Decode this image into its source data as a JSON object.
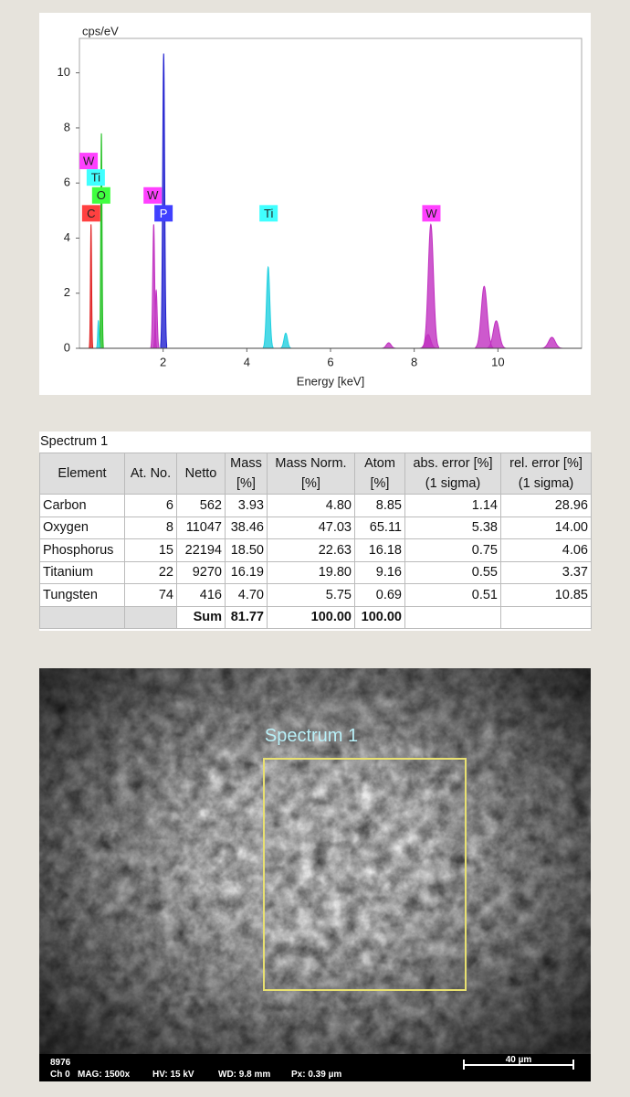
{
  "chart_data": {
    "type": "spectrum",
    "ylabel": "cps/eV",
    "xlabel": "Energy [keV]",
    "xlim": [
      0,
      12
    ],
    "xticks": [
      2,
      4,
      6,
      8,
      10
    ],
    "ylim": [
      0,
      11.25
    ],
    "yticks": [
      0,
      2,
      4,
      6,
      8,
      10
    ],
    "series": [
      {
        "name": "C",
        "color": "#e02020",
        "x": [
          0.277
        ],
        "values": [
          4.5
        ]
      },
      {
        "name": "O",
        "color": "#20c020",
        "x": [
          0.525
        ],
        "values": [
          7.8
        ]
      },
      {
        "name": "Ti",
        "color": "#20d0e0",
        "x": [
          0.452,
          4.51,
          4.93
        ],
        "values": [
          1.0,
          2.95,
          0.55
        ]
      },
      {
        "name": "P",
        "color": "#2020d0",
        "x": [
          2.013
        ],
        "values": [
          10.7
        ]
      },
      {
        "name": "W",
        "color": "#c030c0",
        "x": [
          1.775,
          1.835,
          7.39,
          8.33,
          8.397,
          9.672,
          9.96,
          11.29
        ],
        "values": [
          4.5,
          2.1,
          0.2,
          0.5,
          4.5,
          2.25,
          1.0,
          0.4
        ]
      }
    ],
    "annotations": [
      {
        "text": "W",
        "x": 0.22,
        "y": 6.8,
        "color": "#ff40ff"
      },
      {
        "text": "Ti",
        "x": 0.39,
        "y": 6.2,
        "color": "#40ffff"
      },
      {
        "text": "O",
        "x": 0.52,
        "y": 5.55,
        "color": "#40ff40"
      },
      {
        "text": "C",
        "x": 0.28,
        "y": 4.9,
        "color": "#ff4040"
      },
      {
        "text": "W",
        "x": 1.75,
        "y": 5.55,
        "color": "#ff40ff"
      },
      {
        "text": "P",
        "x": 2.01,
        "y": 4.9,
        "color": "#4040ff"
      },
      {
        "text": "Ti",
        "x": 4.52,
        "y": 4.9,
        "color": "#40ffff"
      },
      {
        "text": "W",
        "x": 8.41,
        "y": 4.9,
        "color": "#ff40ff"
      }
    ]
  },
  "table": {
    "title": "Spectrum 1",
    "columns": [
      [
        "Element"
      ],
      [
        "At. No."
      ],
      [
        "Netto"
      ],
      [
        "Mass",
        "[%]"
      ],
      [
        "Mass Norm.",
        "[%]"
      ],
      [
        "Atom",
        "[%]"
      ],
      [
        "abs. error [%]",
        "(1 sigma)"
      ],
      [
        "rel. error [%]",
        "(1 sigma)"
      ]
    ],
    "rows": [
      [
        "Carbon",
        "6",
        "562",
        "3.93",
        "4.80",
        "8.85",
        "1.14",
        "28.96"
      ],
      [
        "Oxygen",
        "8",
        "11047",
        "38.46",
        "47.03",
        "65.11",
        "5.38",
        "14.00"
      ],
      [
        "Phosphorus",
        "15",
        "22194",
        "18.50",
        "22.63",
        "16.18",
        "0.75",
        "4.06"
      ],
      [
        "Titanium",
        "22",
        "9270",
        "16.19",
        "19.80",
        "9.16",
        "0.55",
        "3.37"
      ],
      [
        "Tungsten",
        "74",
        "416",
        "4.70",
        "5.75",
        "0.69",
        "0.51",
        "10.85"
      ]
    ],
    "footer": {
      "label": "Sum",
      "values": [
        "81.77",
        "100.00",
        "100.00"
      ]
    }
  },
  "image": {
    "region_label": "Spectrum 1",
    "id": "8976",
    "info": [
      "Ch 0",
      "MAG: 1500x",
      "HV: 15 kV",
      "WD: 9.8 mm",
      "Px: 0.39 µm"
    ],
    "scale": "40 µm"
  }
}
